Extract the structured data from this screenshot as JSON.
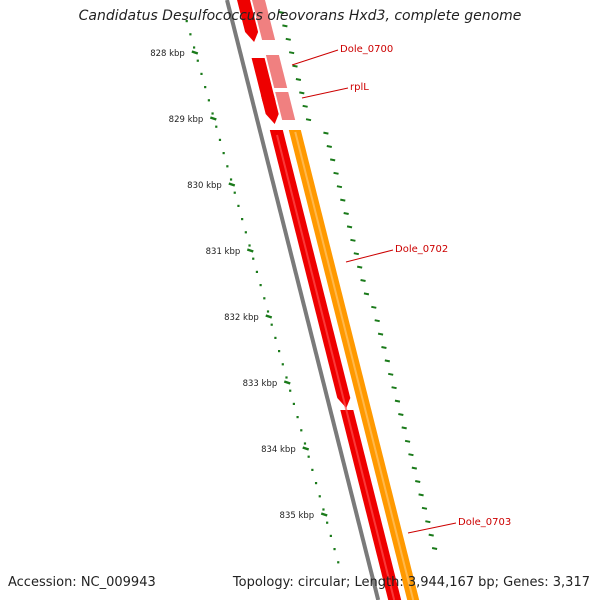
{
  "title": "Candidatus Desulfococcus oleovorans Hxd3, complete genome",
  "footer": {
    "accession": "Accession: NC_009943",
    "summary": "Topology: circular; Length: 3,944,167 bp; Genes: 3,317"
  },
  "colors": {
    "backbone": "#7a7a7a",
    "cds_forward": "#ee0000",
    "cds_forward_light": "#f08080",
    "rna": "#ff9900",
    "tick": "#1a7a1a",
    "label": "#cc0000"
  },
  "ticks": [
    "828 kbp",
    "829 kbp",
    "830 kbp",
    "831 kbp",
    "832 kbp",
    "833 kbp",
    "834 kbp",
    "835 kbp"
  ],
  "genes": [
    {
      "label": "Dole_0700"
    },
    {
      "label": "rplL"
    },
    {
      "label": "Dole_0702"
    },
    {
      "label": "Dole_0703"
    }
  ]
}
